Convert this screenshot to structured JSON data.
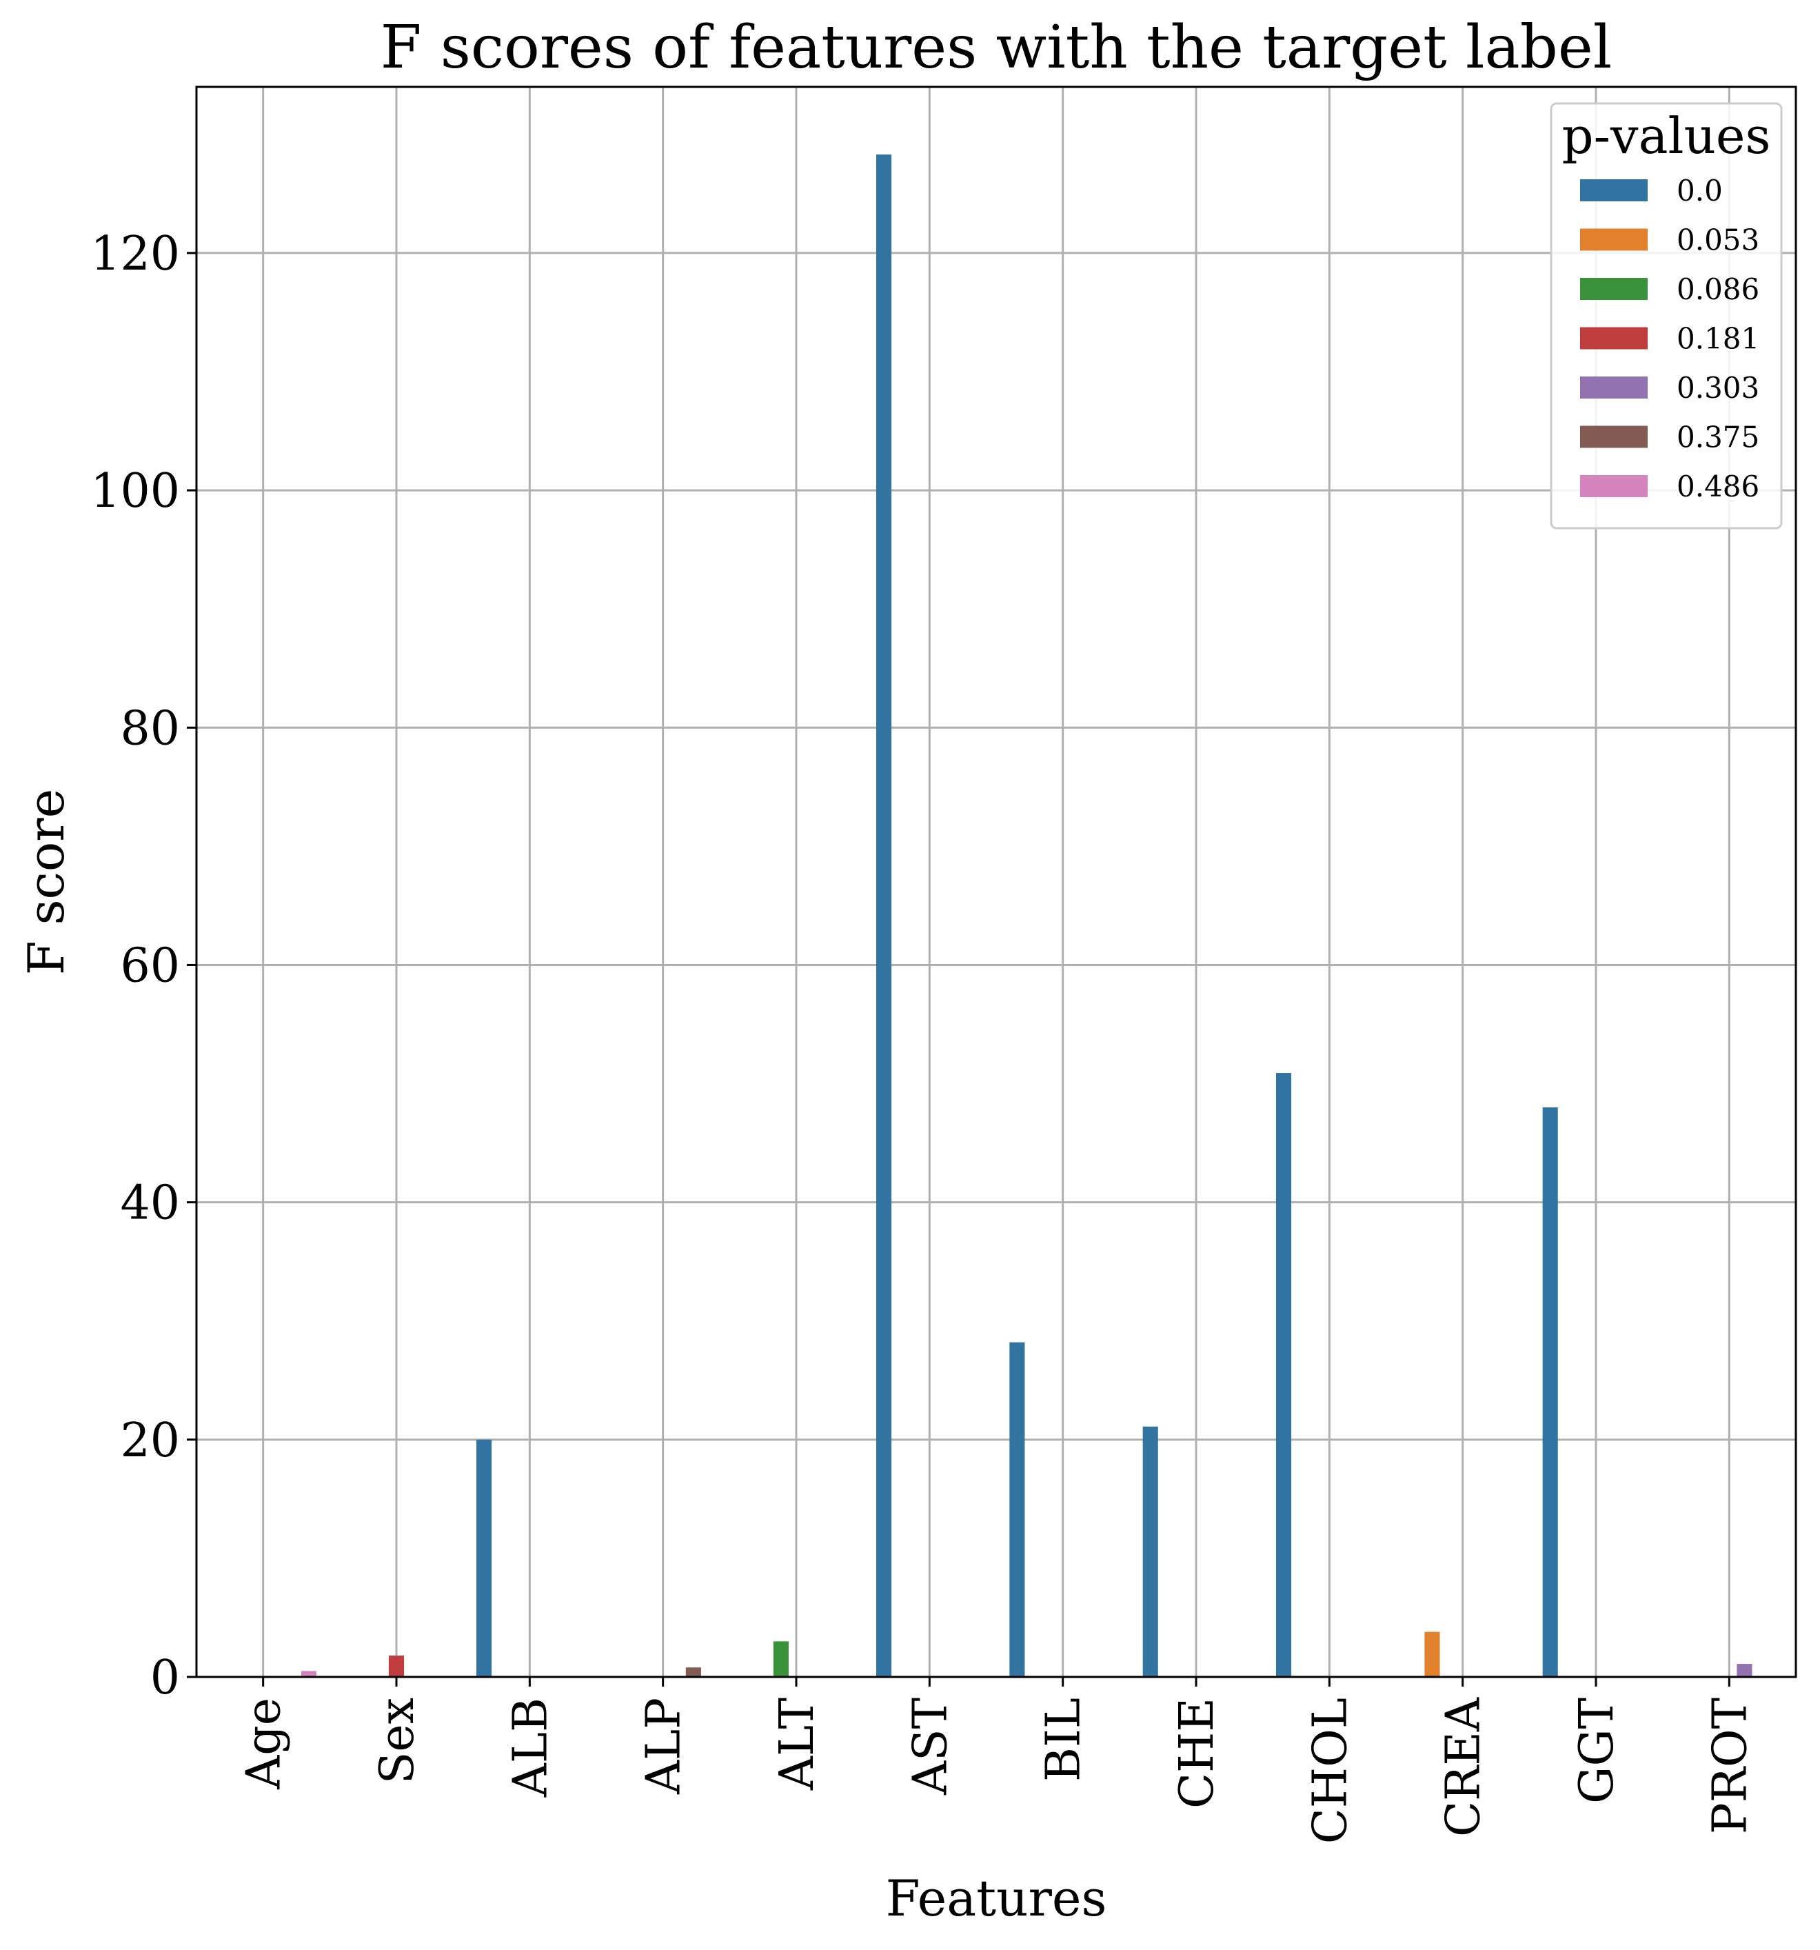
{
  "chart_data": {
    "type": "bar",
    "title": "F scores of features with the target label",
    "xlabel": "Features",
    "ylabel": "F score",
    "categories": [
      "Age",
      "Sex",
      "ALB",
      "ALP",
      "ALT",
      "AST",
      "BIL",
      "CHE",
      "CHOL",
      "CREA",
      "GGT",
      "PROT"
    ],
    "ylim": [
      0,
      134
    ],
    "yticks": [
      0,
      20,
      40,
      60,
      80,
      100,
      120
    ],
    "grid": true,
    "legend": {
      "title": "p-values",
      "placement": "top-right"
    },
    "series": [
      {
        "name": "0.0",
        "color": "#3274a1",
        "values": [
          null,
          null,
          20.0,
          null,
          null,
          128.3,
          28.2,
          21.1,
          50.9,
          null,
          48.0,
          null
        ]
      },
      {
        "name": "0.053",
        "color": "#e1812c",
        "values": [
          null,
          null,
          null,
          null,
          null,
          null,
          null,
          null,
          null,
          3.8,
          null,
          null
        ]
      },
      {
        "name": "0.086",
        "color": "#3a923a",
        "values": [
          null,
          null,
          null,
          null,
          3.0,
          null,
          null,
          null,
          null,
          null,
          null,
          null
        ]
      },
      {
        "name": "0.181",
        "color": "#c03d3e",
        "values": [
          null,
          1.8,
          null,
          null,
          null,
          null,
          null,
          null,
          null,
          null,
          null,
          null
        ]
      },
      {
        "name": "0.303",
        "color": "#9372b2",
        "values": [
          null,
          null,
          null,
          null,
          null,
          null,
          null,
          null,
          null,
          null,
          null,
          1.1
        ]
      },
      {
        "name": "0.375",
        "color": "#845b53",
        "values": [
          null,
          null,
          null,
          0.8,
          null,
          null,
          null,
          null,
          null,
          null,
          null,
          null
        ]
      },
      {
        "name": "0.486",
        "color": "#d684bd",
        "values": [
          0.5,
          null,
          null,
          null,
          null,
          null,
          null,
          null,
          null,
          null,
          null,
          null
        ]
      }
    ]
  }
}
